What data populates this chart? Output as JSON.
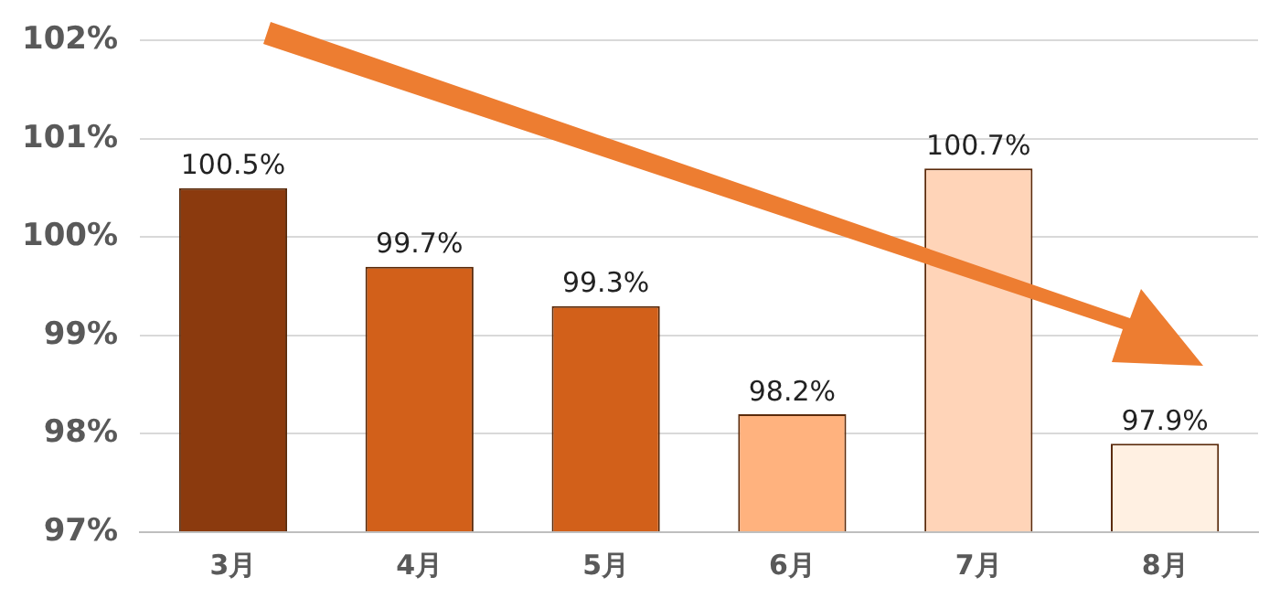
{
  "chart_data": {
    "type": "bar",
    "categories": [
      "3月",
      "4月",
      "5月",
      "6月",
      "7月",
      "8月"
    ],
    "values": [
      100.5,
      99.7,
      99.3,
      98.2,
      100.7,
      97.9
    ],
    "colors": [
      "#8b3a0e",
      "#d2601a",
      "#d2601a",
      "#ffb27e",
      "#ffd4b8",
      "#fff0e2"
    ],
    "value_labels": [
      "100.5%",
      "99.7%",
      "99.3%",
      "98.2%",
      "100.7%",
      "97.9%"
    ],
    "ylim": [
      97,
      102
    ],
    "yticks": [
      {
        "value": 97,
        "label": "97%"
      },
      {
        "value": 98,
        "label": "98%"
      },
      {
        "value": 99,
        "label": "99%"
      },
      {
        "value": 100,
        "label": "100%"
      },
      {
        "value": 101,
        "label": "101%"
      },
      {
        "value": 102,
        "label": "102%"
      }
    ],
    "grid": "y",
    "legend": false
  }
}
